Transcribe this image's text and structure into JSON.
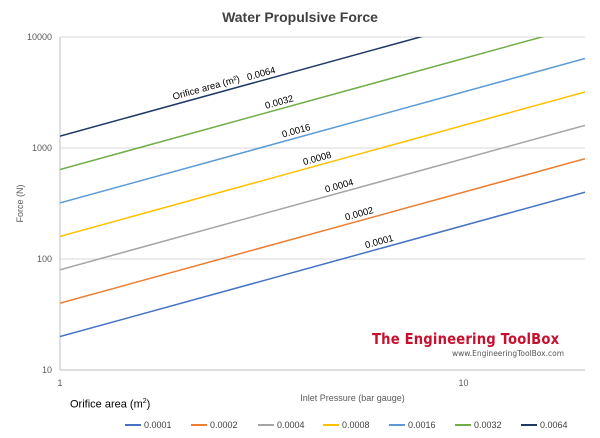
{
  "chart_data": {
    "type": "line",
    "title": "Water Propulsive Force",
    "xlabel": "Inlet Pressure (bar gauge)",
    "ylabel": "Force (N)",
    "x_scale": "log",
    "y_scale": "log",
    "xlim": [
      1,
      20
    ],
    "ylim": [
      10,
      10000
    ],
    "x_ticks": [
      "1",
      "10"
    ],
    "y_ticks": [
      "10",
      "100",
      "1000",
      "10000"
    ],
    "grid": "horizontal",
    "legend_title": "Orifice area (m²)",
    "legend_position": "bottom",
    "annotation": "Orifice area (m²)",
    "series": [
      {
        "name": "0.0001",
        "color": "#4472c4",
        "x": [
          1,
          20
        ],
        "y": [
          20,
          400
        ]
      },
      {
        "name": "0.0002",
        "color": "#ed7d31",
        "x": [
          1,
          20
        ],
        "y": [
          40,
          800
        ]
      },
      {
        "name": "0.0004",
        "color": "#a5a5a5",
        "x": [
          1,
          20
        ],
        "y": [
          80,
          1600
        ]
      },
      {
        "name": "0.0008",
        "color": "#ffc000",
        "x": [
          1,
          20
        ],
        "y": [
          160,
          3200
        ]
      },
      {
        "name": "0.0016",
        "color": "#5b9bd5",
        "x": [
          1,
          20
        ],
        "y": [
          320,
          6400
        ]
      },
      {
        "name": "0.0032",
        "color": "#70ad47",
        "x": [
          1,
          20
        ],
        "y": [
          640,
          12800
        ]
      },
      {
        "name": "0.0064",
        "color": "#1f3864",
        "x": [
          1,
          20
        ],
        "y": [
          1280,
          25600
        ]
      }
    ]
  },
  "watermark": {
    "brand": "The Engineering ToolBox",
    "url": "www.EngineeringToolBox.com"
  }
}
